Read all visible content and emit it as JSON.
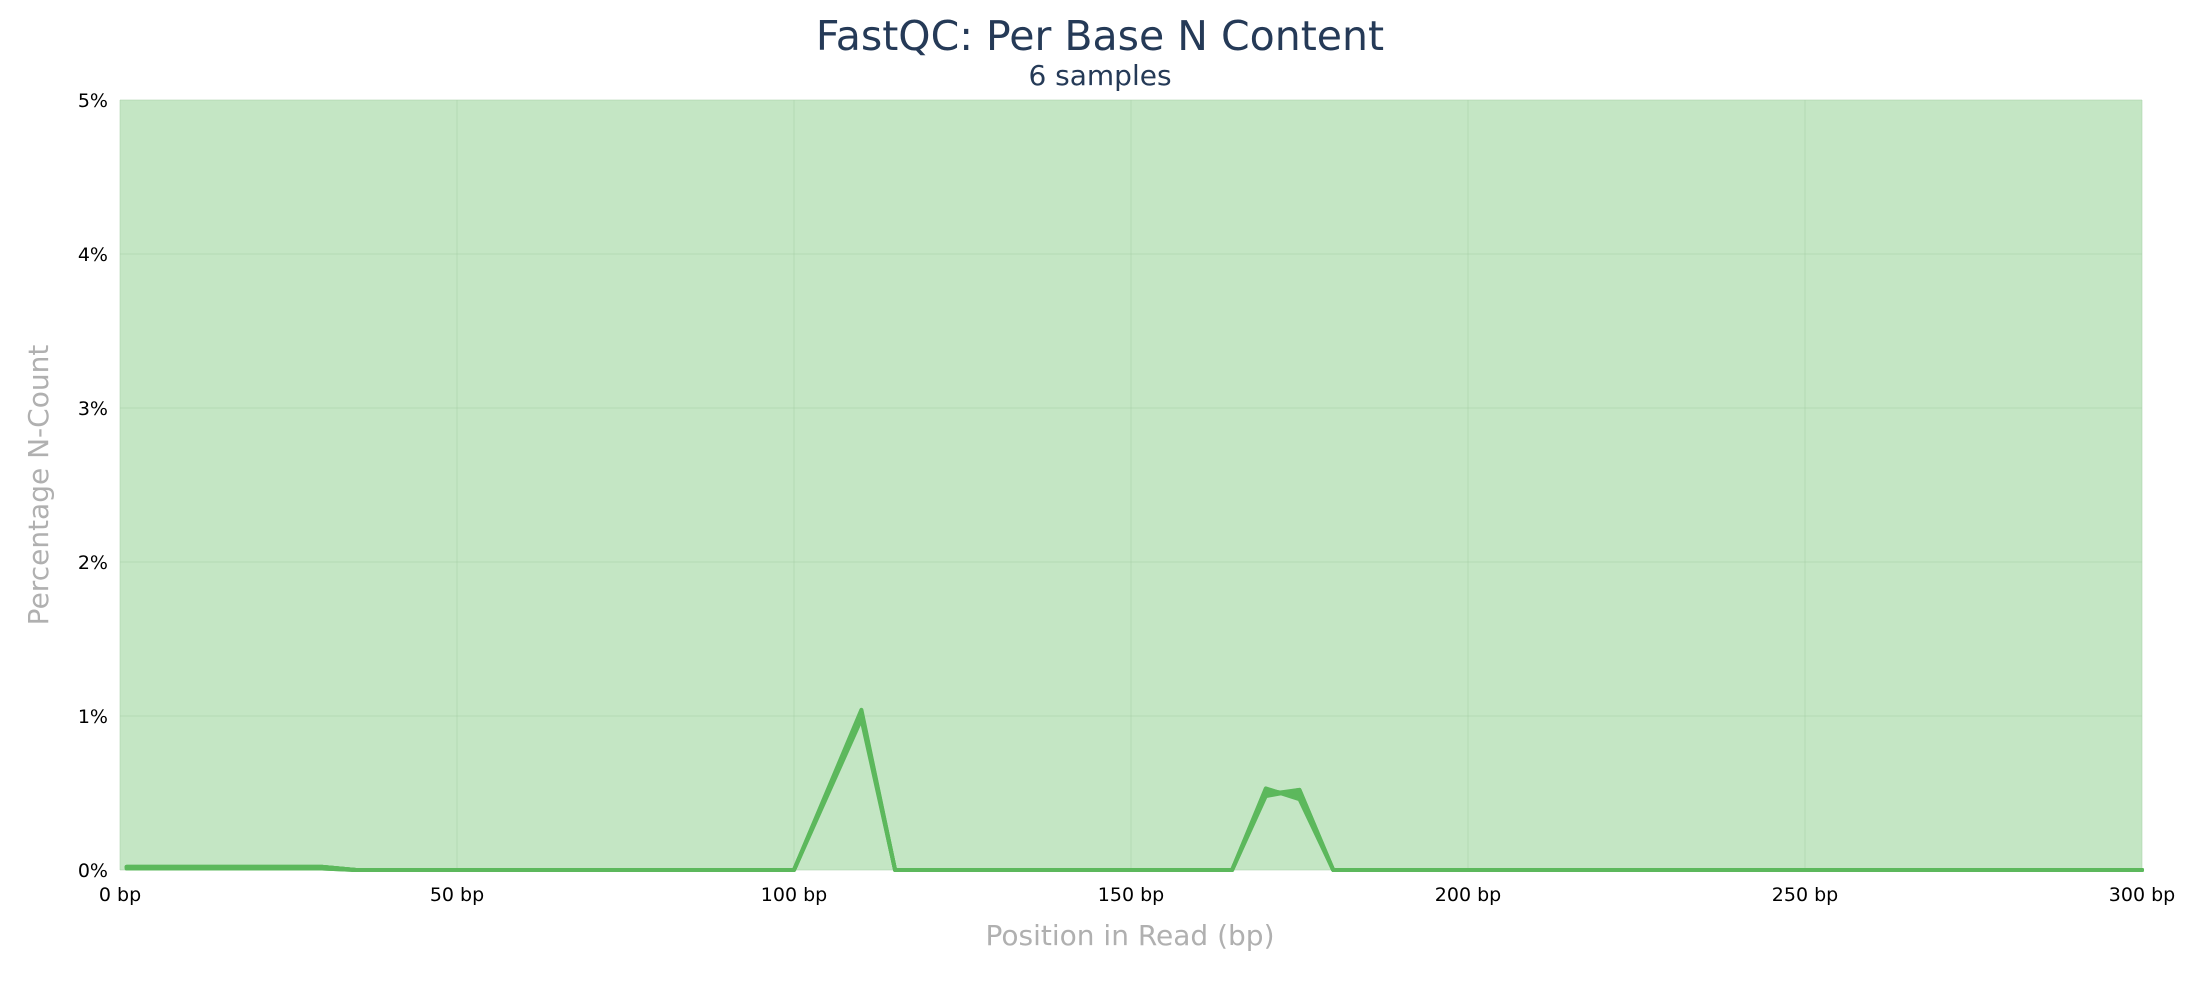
{
  "chart_data": {
    "type": "line",
    "title": "FastQC: Per Base N Content",
    "subtitle": "6 samples",
    "xlabel": "Position in Read (bp)",
    "ylabel": "Percentage N-Count",
    "xlim": [
      0,
      300
    ],
    "ylim": [
      0,
      5
    ],
    "x_ticks": [
      0,
      50,
      100,
      150,
      200,
      250,
      300
    ],
    "x_tick_labels": [
      "0 bp",
      "50 bp",
      "100 bp",
      "150 bp",
      "200 bp",
      "250 bp",
      "300 bp"
    ],
    "y_ticks": [
      0,
      1,
      2,
      3,
      4,
      5
    ],
    "y_tick_labels": [
      "0%",
      "1%",
      "2%",
      "3%",
      "4%",
      "5%"
    ],
    "grid": true,
    "background_color": "#c4e6c4",
    "line_color": "#5cb85c",
    "series": [
      {
        "x": [
          1,
          5,
          10,
          20,
          30,
          35,
          100,
          110,
          115,
          165,
          170,
          175,
          180,
          300
        ],
        "y": [
          0.02,
          0.02,
          0.02,
          0.02,
          0.02,
          0,
          0,
          1.02,
          0,
          0,
          0.48,
          0.52,
          0,
          0
        ]
      },
      {
        "x": [
          1,
          5,
          10,
          20,
          30,
          35,
          100,
          110,
          115,
          165,
          170,
          175,
          180,
          300
        ],
        "y": [
          0.02,
          0.02,
          0.02,
          0.02,
          0.02,
          0,
          0,
          1.04,
          0,
          0,
          0.53,
          0.46,
          0,
          0
        ]
      },
      {
        "x": [
          1,
          5,
          10,
          20,
          30,
          35,
          100,
          110,
          115,
          165,
          170,
          175,
          180,
          300
        ],
        "y": [
          0.01,
          0.01,
          0.01,
          0.01,
          0.01,
          0,
          0,
          0.98,
          0,
          0,
          0.5,
          0.5,
          0,
          0
        ]
      },
      {
        "x": [
          1,
          5,
          10,
          20,
          30,
          35,
          100,
          110,
          115,
          165,
          170,
          175,
          180,
          300
        ],
        "y": [
          0.02,
          0.02,
          0.02,
          0.02,
          0.02,
          0,
          0,
          1.0,
          0,
          0,
          0.51,
          0.49,
          0,
          0
        ]
      },
      {
        "x": [
          1,
          5,
          10,
          20,
          30,
          35,
          100,
          110,
          115,
          165,
          170,
          175,
          180,
          300
        ],
        "y": [
          0.01,
          0.01,
          0.01,
          0.01,
          0.01,
          0,
          0,
          1.03,
          0,
          0,
          0.49,
          0.52,
          0,
          0
        ]
      },
      {
        "x": [
          1,
          5,
          10,
          20,
          30,
          35,
          100,
          110,
          115,
          165,
          170,
          175,
          180,
          300
        ],
        "y": [
          0.02,
          0.02,
          0.02,
          0.02,
          0.02,
          0,
          0,
          1.01,
          0,
          0,
          0.52,
          0.48,
          0,
          0
        ]
      }
    ]
  }
}
